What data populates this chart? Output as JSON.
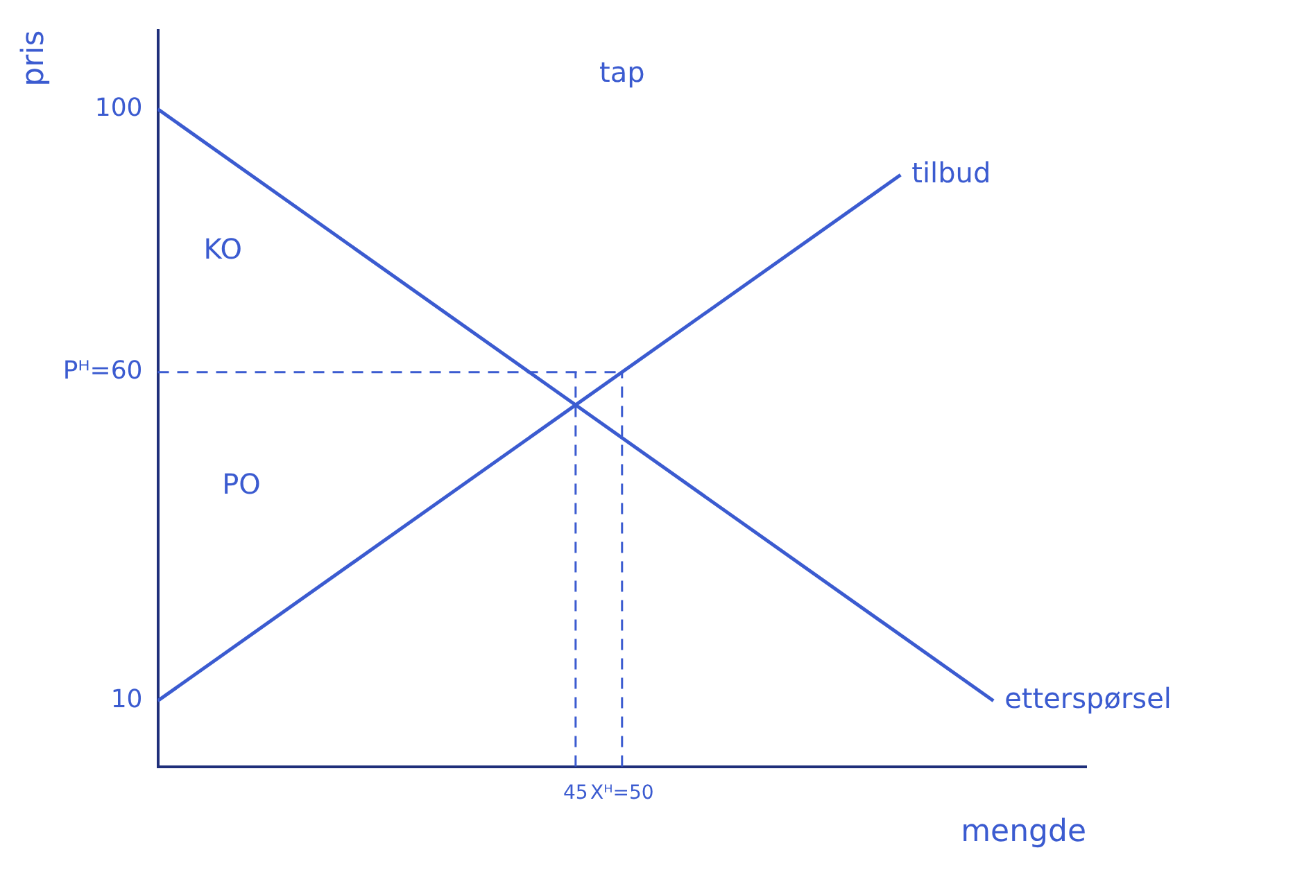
{
  "chart_data": {
    "type": "line",
    "xlabel": "mengde",
    "ylabel": "pris",
    "series": [
      {
        "name": "tilbud",
        "color": "#3b5bd0",
        "x": [
          0,
          80
        ],
        "values": [
          10,
          90
        ]
      },
      {
        "name": "etterspørsel",
        "color": "#3b5bd0",
        "x": [
          0,
          90
        ],
        "values": [
          100,
          10
        ]
      }
    ],
    "xlim": [
      0,
      100
    ],
    "ylim": [
      0,
      112
    ],
    "xticks": [
      45,
      {
        "value": 50,
        "label": "Xᴴ=50"
      }
    ],
    "yticks": [
      10,
      {
        "value": 60,
        "label": "Pᴴ=60"
      },
      100
    ],
    "ref_lines": [
      {
        "axis": "y",
        "value": 60,
        "color": "#3b5bd0",
        "line_style": "dashed"
      },
      {
        "axis": "x",
        "value": 45,
        "color": "#3b5bd0",
        "line_style": "dashed"
      },
      {
        "axis": "x",
        "value": 50,
        "color": "#3b5bd0",
        "line_style": "dashed"
      }
    ],
    "annotations": [
      "KO",
      "PO",
      "tap"
    ],
    "grid": false,
    "legend": false,
    "marker": "none",
    "line_style": "solid"
  }
}
